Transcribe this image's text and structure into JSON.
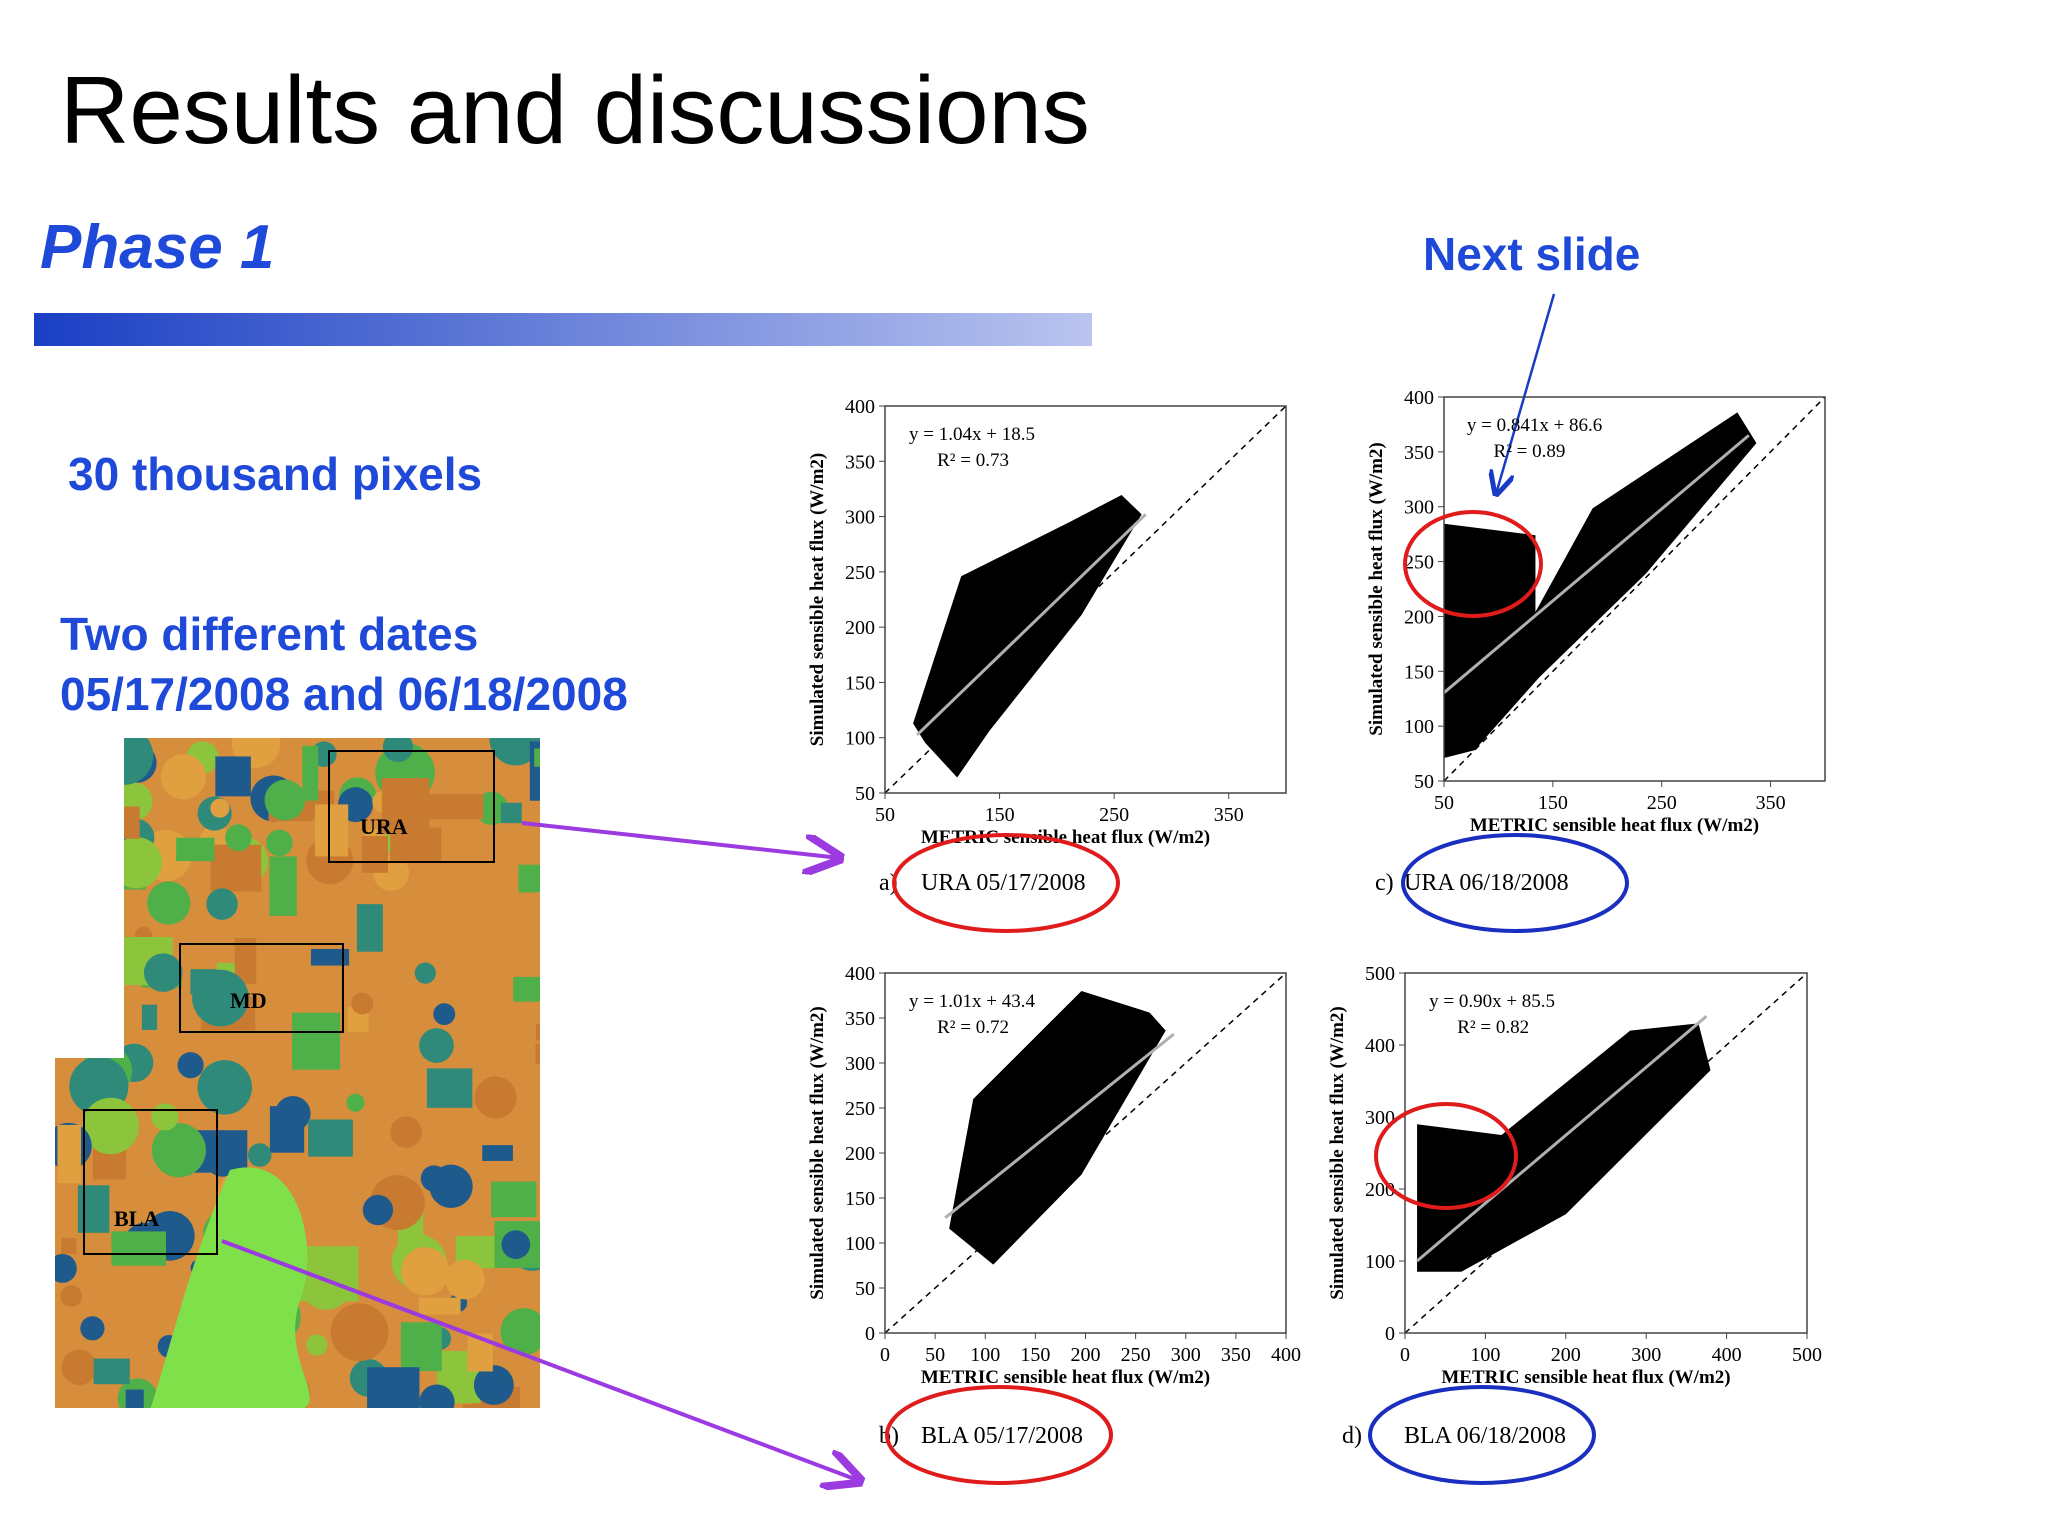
{
  "header": {
    "title": "Results and discussions",
    "subtitle": "Phase 1",
    "note": "Next slide"
  },
  "bullets": [
    "30 thousand pixels",
    "Two different dates",
    "05/17/2008 and 06/18/2008"
  ],
  "map": {
    "labels": [
      "URA",
      "MD",
      "BLA"
    ]
  },
  "panels": [
    {
      "letter": "a)",
      "caption": "URA 05/17/2008",
      "equation": "y = 1.04x  + 18.5",
      "r2": "R² = 0.73",
      "ylabel": "Simulated  sensible heat flux (W/m2)",
      "xlabel": "METRIC  sensible heat flux (W/m2)",
      "xlim": [
        50,
        400
      ],
      "ylim": [
        50,
        400
      ],
      "xticks": [
        50,
        150,
        250,
        350
      ],
      "yticks": [
        50,
        100,
        150,
        200,
        250,
        300,
        350,
        400
      ]
    },
    {
      "letter": "c)",
      "caption": "URA 06/18/2008",
      "equation": "y = 0.841x  + 86.6",
      "r2": "R² = 0.89",
      "ylabel": "Simulated  sensible heat flux (W/m2)",
      "xlabel": "METRIC  sensible heat flux (W/m2)",
      "xlim": [
        50,
        400
      ],
      "ylim": [
        50,
        400
      ],
      "xticks": [
        50,
        150,
        250,
        350
      ],
      "yticks": [
        50,
        100,
        150,
        200,
        250,
        300,
        350,
        400
      ]
    },
    {
      "letter": "b)",
      "caption": "BLA 05/17/2008",
      "equation": "y = 1.01x  + 43.4",
      "r2": "R² = 0.72",
      "ylabel": "Simulated  sensible heat flux (W/m2)",
      "xlabel": "METRIC  sensible heat flux (W/m2)",
      "xlim": [
        0,
        400
      ],
      "ylim": [
        0,
        400
      ],
      "xticks": [
        0,
        50,
        100,
        150,
        200,
        250,
        300,
        350,
        400
      ],
      "yticks": [
        0,
        50,
        100,
        150,
        200,
        250,
        300,
        350,
        400
      ]
    },
    {
      "letter": "d)",
      "caption": "BLA 06/18/2008",
      "equation": "y = 0.90x  + 85.5",
      "r2": "R² = 0.82",
      "ylabel": "Simulated  sensible heat flux (W/m2)",
      "xlabel": "METRIC  sensible heat flux (W/m2)",
      "xlim": [
        0,
        500
      ],
      "ylim": [
        0,
        500
      ],
      "xticks": [
        0,
        100,
        200,
        300,
        400,
        500
      ],
      "yticks": [
        0,
        100,
        200,
        300,
        400,
        500
      ]
    }
  ]
}
